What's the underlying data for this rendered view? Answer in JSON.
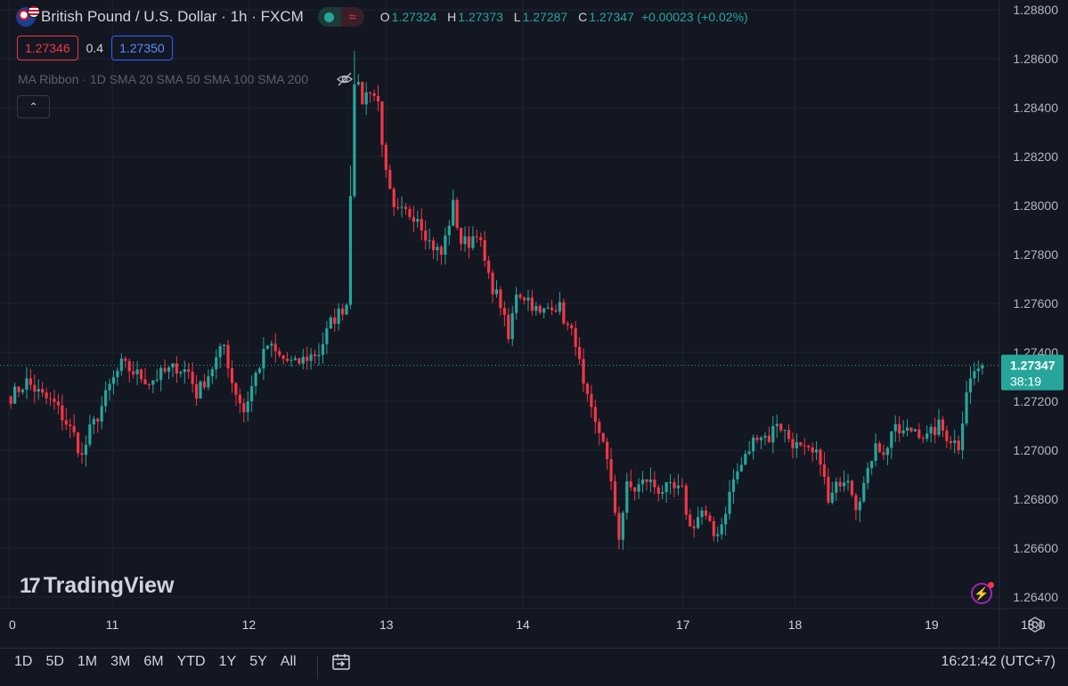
{
  "header": {
    "title": "British Pound / U.S. Dollar · 1h · FXCM",
    "ohlc": [
      {
        "key": "O",
        "value": "1.27324"
      },
      {
        "key": "H",
        "value": "1.27373"
      },
      {
        "key": "L",
        "value": "1.27287"
      },
      {
        "key": "C",
        "value": "1.27347"
      }
    ],
    "change": "+0.00023 (+0.02%)",
    "pill_wave": "≈"
  },
  "trade": {
    "bid": "1.27346",
    "spread": "0.4",
    "ask": "1.27350"
  },
  "indicator": {
    "label": "MA Ribbon · 1D SMA 20 SMA 50 SMA 100 SMA 200"
  },
  "collapse_glyph": "⌃",
  "logo": {
    "mark": "17",
    "text": "TradingView"
  },
  "price_label": {
    "price": "1.27347",
    "countdown": "38:19",
    "color": "#26a69a"
  },
  "colors": {
    "up": "#26a69a",
    "down": "#f23645",
    "bg": "#131722",
    "grid": "#1f2330"
  },
  "footer": {
    "timeframes": [
      "1D",
      "5D",
      "1M",
      "3M",
      "6M",
      "YTD",
      "1Y",
      "5Y",
      "All"
    ],
    "clock": "16:21:42 (UTC+7)"
  },
  "chart_data": {
    "type": "candlestick",
    "instrument": "GBP/USD",
    "y_ticks": [
      "1.28800",
      "1.28600",
      "1.28400",
      "1.28200",
      "1.28000",
      "1.27800",
      "1.27600",
      "1.27400",
      "1.27200",
      "1.27000",
      "1.26800",
      "1.26600",
      "1.26400"
    ],
    "y_range": [
      1.2636,
      1.2884
    ],
    "x_ticks": [
      {
        "label": "0",
        "pos": 0.0
      },
      {
        "label": "11",
        "pos": 0.106
      },
      {
        "label": "12",
        "pos": 0.246
      },
      {
        "label": "13",
        "pos": 0.387
      },
      {
        "label": "14",
        "pos": 0.527
      },
      {
        "label": "17",
        "pos": 0.691
      },
      {
        "label": "18",
        "pos": 0.806
      },
      {
        "label": "19",
        "pos": 0.946
      },
      {
        "label": "18:0",
        "pos": 1.05
      }
    ],
    "keypoints": [
      [
        0,
        1.2722
      ],
      [
        4,
        1.2728
      ],
      [
        8,
        1.2722
      ],
      [
        11,
        1.2719
      ],
      [
        16,
        1.2706
      ],
      [
        18,
        1.2697
      ],
      [
        20,
        1.2708
      ],
      [
        22,
        1.2714
      ],
      [
        25,
        1.2726
      ],
      [
        28,
        1.2735
      ],
      [
        32,
        1.2731
      ],
      [
        35,
        1.2728
      ],
      [
        38,
        1.2731
      ],
      [
        42,
        1.2734
      ],
      [
        45,
        1.2732
      ],
      [
        47,
        1.2723
      ],
      [
        50,
        1.2731
      ],
      [
        54,
        1.2743
      ],
      [
        56,
        1.2728
      ],
      [
        59,
        1.2716
      ],
      [
        62,
        1.2731
      ],
      [
        65,
        1.2743
      ],
      [
        68,
        1.2738
      ],
      [
        72,
        1.2735
      ],
      [
        75,
        1.2738
      ],
      [
        78,
        1.274
      ],
      [
        81,
        1.2752
      ],
      [
        85,
        1.276
      ],
      [
        87,
        1.2852
      ],
      [
        89,
        1.2843
      ],
      [
        91,
        1.2848
      ],
      [
        93,
        1.2842
      ],
      [
        95,
        1.2812
      ],
      [
        97,
        1.2797
      ],
      [
        100,
        1.2797
      ],
      [
        103,
        1.2796
      ],
      [
        106,
        1.2785
      ],
      [
        109,
        1.278
      ],
      [
        112,
        1.28
      ],
      [
        114,
        1.2785
      ],
      [
        116,
        1.2785
      ],
      [
        118,
        1.279
      ],
      [
        121,
        1.277
      ],
      [
        124,
        1.276
      ],
      [
        126,
        1.2745
      ],
      [
        128,
        1.2765
      ],
      [
        131,
        1.2762
      ],
      [
        134,
        1.2755
      ],
      [
        137,
        1.276
      ],
      [
        139,
        1.2758
      ],
      [
        141,
        1.275
      ],
      [
        143,
        1.2745
      ],
      [
        145,
        1.2725
      ],
      [
        148,
        1.271
      ],
      [
        150,
        1.2705
      ],
      [
        152,
        1.2685
      ],
      [
        154,
        1.2665
      ],
      [
        156,
        1.2685
      ],
      [
        158,
        1.2684
      ],
      [
        161,
        1.2688
      ],
      [
        164,
        1.2684
      ],
      [
        167,
        1.2684
      ],
      [
        170,
        1.2683
      ],
      [
        172,
        1.2668
      ],
      [
        175,
        1.2675
      ],
      [
        178,
        1.2665
      ],
      [
        180,
        1.267
      ],
      [
        183,
        1.2688
      ],
      [
        186,
        1.2697
      ],
      [
        189,
        1.2707
      ],
      [
        192,
        1.2705
      ],
      [
        194,
        1.2712
      ],
      [
        197,
        1.2705
      ],
      [
        200,
        1.27
      ],
      [
        203,
        1.2698
      ],
      [
        205,
        1.2697
      ],
      [
        207,
        1.2678
      ],
      [
        210,
        1.2688
      ],
      [
        212,
        1.269
      ],
      [
        214,
        1.2678
      ],
      [
        217,
        1.269
      ],
      [
        219,
        1.2705
      ],
      [
        221,
        1.2697
      ],
      [
        223,
        1.2708
      ],
      [
        226,
        1.2707
      ],
      [
        229,
        1.2709
      ],
      [
        232,
        1.2705
      ],
      [
        235,
        1.271
      ],
      [
        237,
        1.2706
      ],
      [
        240,
        1.2702
      ],
      [
        242,
        1.2725
      ],
      [
        244,
        1.2732
      ],
      [
        246,
        1.2735
      ]
    ],
    "total_candles": 247,
    "current_price": 1.27347
  }
}
